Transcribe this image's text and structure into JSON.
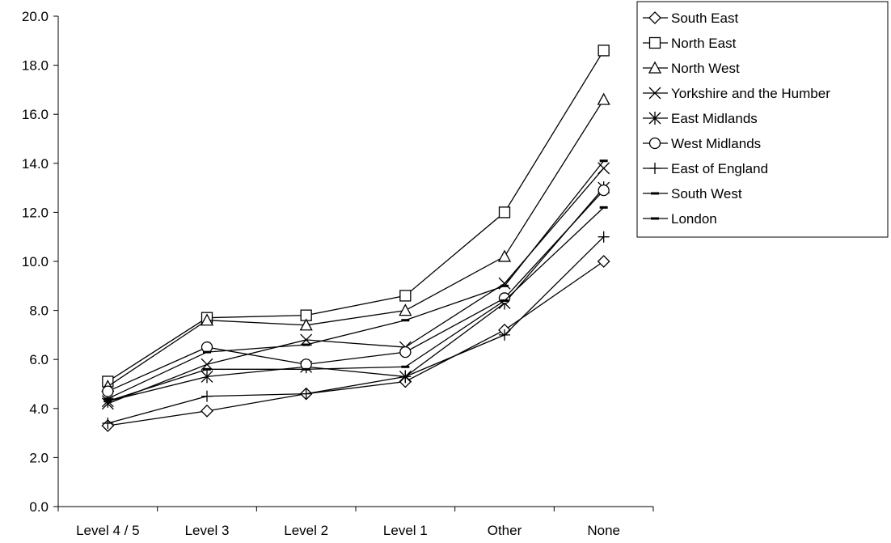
{
  "chart_data": {
    "type": "line",
    "title": "",
    "xlabel": "",
    "ylabel": "",
    "categories": [
      "Level 4 / 5",
      "Level 3",
      "Level 2",
      "Level 1",
      "Other",
      "None"
    ],
    "ylim": [
      0,
      20
    ],
    "ytick_step": 2,
    "ytick_labels": [
      "0.0",
      "2.0",
      "4.0",
      "6.0",
      "8.0",
      "10.0",
      "12.0",
      "14.0",
      "16.0",
      "18.0",
      "20.0"
    ],
    "grid": false,
    "legend_position": "top-right",
    "line_color": "#000000",
    "series": [
      {
        "name": "South East",
        "marker": "diamond",
        "values": [
          3.3,
          3.9,
          4.6,
          5.1,
          7.2,
          10.0
        ]
      },
      {
        "name": "North East",
        "marker": "square",
        "values": [
          5.1,
          7.7,
          7.8,
          8.6,
          12.0,
          18.6
        ]
      },
      {
        "name": "North West",
        "marker": "triangle",
        "values": [
          4.9,
          7.6,
          7.4,
          8.0,
          10.2,
          16.6
        ]
      },
      {
        "name": "Yorkshire and the Humber",
        "marker": "x",
        "values": [
          4.2,
          5.8,
          6.8,
          6.5,
          9.1,
          13.8
        ]
      },
      {
        "name": "East Midlands",
        "marker": "asterisk",
        "values": [
          4.3,
          5.3,
          5.7,
          5.3,
          8.3,
          13.0
        ]
      },
      {
        "name": "West Midlands",
        "marker": "circle",
        "values": [
          4.7,
          6.5,
          5.8,
          6.3,
          8.5,
          12.9
        ]
      },
      {
        "name": "East of England",
        "marker": "plus",
        "values": [
          3.4,
          4.5,
          4.6,
          5.3,
          7.0,
          11.0
        ]
      },
      {
        "name": "South West",
        "marker": "dash",
        "values": [
          4.3,
          5.6,
          5.6,
          5.7,
          8.4,
          12.2
        ]
      },
      {
        "name": "London",
        "marker": "dash",
        "values": [
          4.4,
          6.3,
          6.6,
          7.6,
          9.0,
          14.1
        ]
      }
    ]
  }
}
